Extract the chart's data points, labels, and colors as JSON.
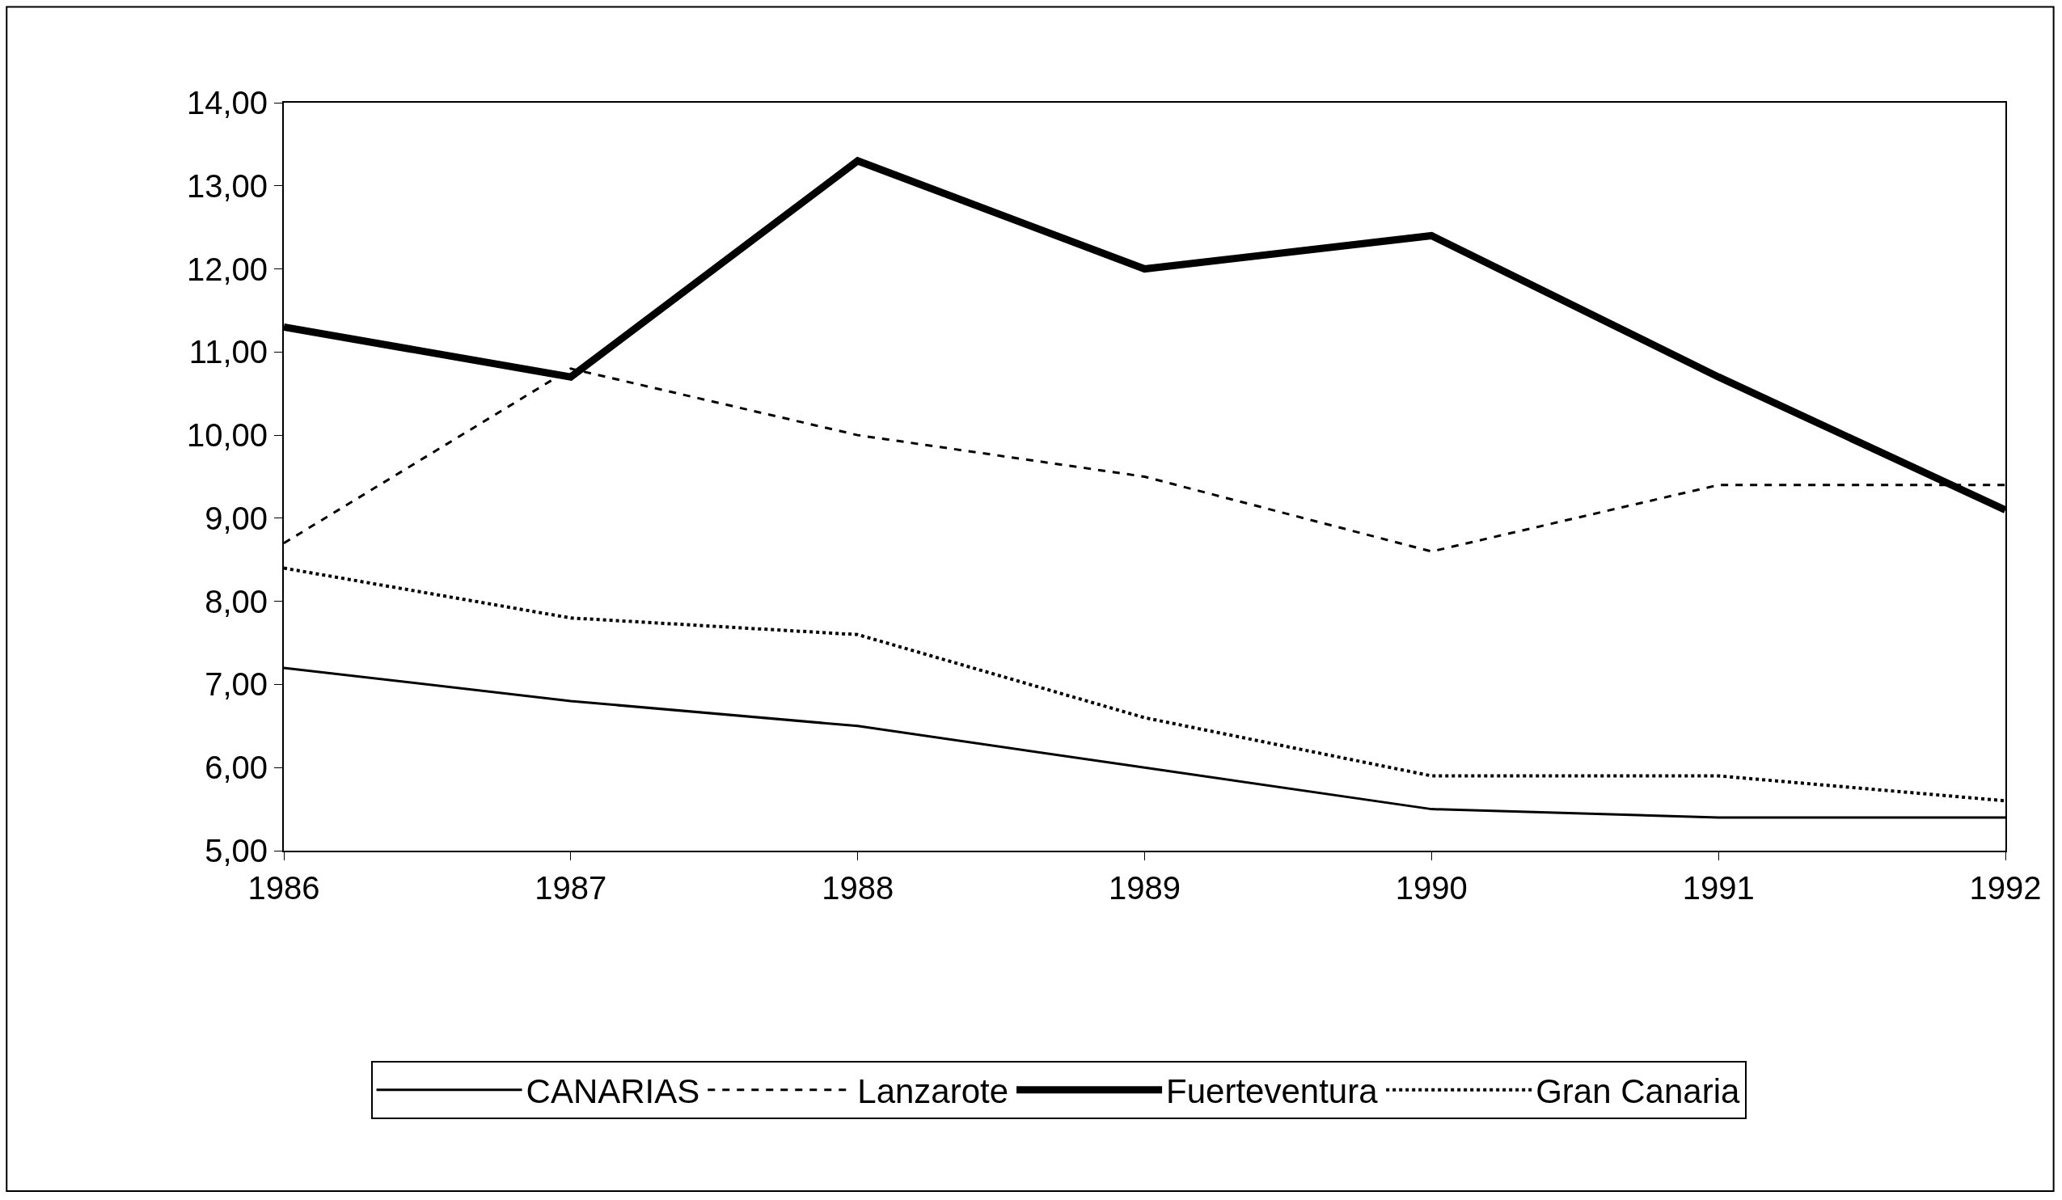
{
  "chart_data": {
    "type": "line",
    "categories": [
      "1986",
      "1987",
      "1988",
      "1989",
      "1990",
      "1991",
      "1992"
    ],
    "ylim": [
      5,
      14
    ],
    "yticks": [
      {
        "value": 5,
        "label": "5,00"
      },
      {
        "value": 6,
        "label": "6,00"
      },
      {
        "value": 7,
        "label": "7,00"
      },
      {
        "value": 8,
        "label": "8,00"
      },
      {
        "value": 9,
        "label": "9,00"
      },
      {
        "value": 10,
        "label": "10,00"
      },
      {
        "value": 11,
        "label": "11,00"
      },
      {
        "value": 12,
        "label": "12,00"
      },
      {
        "value": 13,
        "label": "13,00"
      },
      {
        "value": 14,
        "label": "14,00"
      }
    ],
    "legend": "bottom",
    "marker": "none",
    "series": [
      {
        "name": "CANARIAS",
        "color": "#000000",
        "line_style": "solid",
        "values": [
          7.2,
          6.8,
          6.5,
          6.0,
          5.5,
          5.4,
          5.4
        ]
      },
      {
        "name": "Lanzarote",
        "color": "#000000",
        "line_style": "dashed",
        "values": [
          8.7,
          10.8,
          10.0,
          9.5,
          8.6,
          9.4,
          9.4
        ]
      },
      {
        "name": "Fuerteventura",
        "color": "#000000",
        "line_style": "solid",
        "values": [
          11.3,
          10.7,
          13.3,
          12.0,
          12.4,
          10.7,
          9.1
        ]
      },
      {
        "name": "Gran Canaria",
        "color": "#000000",
        "line_style": "dotted",
        "values": [
          8.4,
          7.8,
          7.6,
          6.6,
          5.9,
          5.9,
          5.6
        ]
      }
    ]
  }
}
